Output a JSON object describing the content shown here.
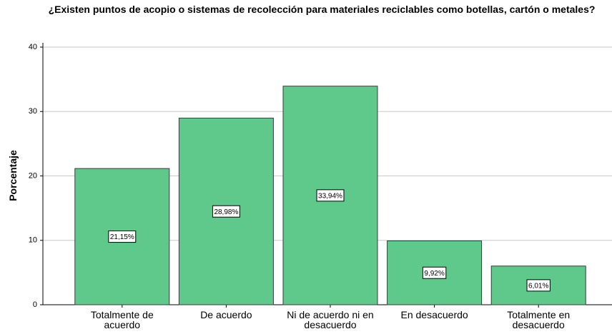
{
  "chart_data": {
    "type": "bar",
    "title": "¿Existen puntos de acopio o sistemas de recolección para materiales reciclables como botellas, cartón o metales?",
    "y_label": "Porcentaje",
    "categories": [
      "Totalmente de acuerdo",
      "De acuerdo",
      "Ni de acuerdo ni en desacuerdo",
      "En desacuerdo",
      "Totalmente en desacuerdo"
    ],
    "values": [
      21.15,
      28.98,
      33.94,
      9.92,
      6.01
    ],
    "value_labels": [
      "21,15%",
      "28,98%",
      "33,94%",
      "9,92%",
      "6,01%"
    ],
    "color": "#5ec98a",
    "ylim": [
      0,
      40
    ],
    "yticks": [
      0,
      10,
      20,
      30,
      40
    ],
    "grid": true
  }
}
